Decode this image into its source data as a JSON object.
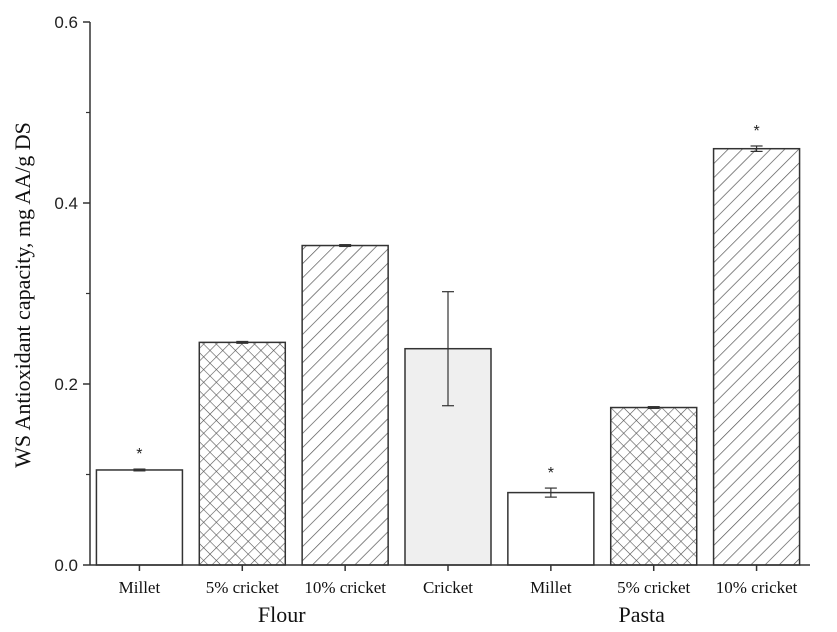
{
  "chart_data": {
    "type": "bar",
    "title": "",
    "xlabel": "",
    "ylabel": "WS Antioxidant capacity, mg AA/g DS",
    "ylim": [
      0,
      0.6
    ],
    "yticks": [
      0.0,
      0.2,
      0.4,
      0.6
    ],
    "ytick_labels": [
      "0.0",
      "0.2",
      "0.4",
      "0.6"
    ],
    "grid": false,
    "categories": [
      "Millet",
      "5% cricket",
      "10% cricket",
      "Cricket",
      "Millet",
      "5% cricket",
      "10% cricket"
    ],
    "groups": [
      {
        "label": "Flour",
        "bar_indices": [
          0,
          1,
          2,
          3
        ]
      },
      {
        "label": "Pasta",
        "bar_indices": [
          4,
          5,
          6
        ]
      }
    ],
    "values": [
      0.105,
      0.246,
      0.353,
      0.239,
      0.08,
      0.174,
      0.46
    ],
    "errors": [
      0.001,
      0.001,
      0.001,
      0.063,
      0.005,
      0.001,
      0.003
    ],
    "significance": [
      "*",
      "",
      "",
      "",
      "*",
      "",
      "*"
    ],
    "fill_patterns": [
      "none",
      "crosshatch",
      "diagonal",
      "solid-gray",
      "none",
      "crosshatch",
      "diagonal"
    ],
    "colors": {
      "bar_stroke": "#333333",
      "solid_fill": "#efefef",
      "hatch": "#555555",
      "axis": "#333333"
    }
  }
}
